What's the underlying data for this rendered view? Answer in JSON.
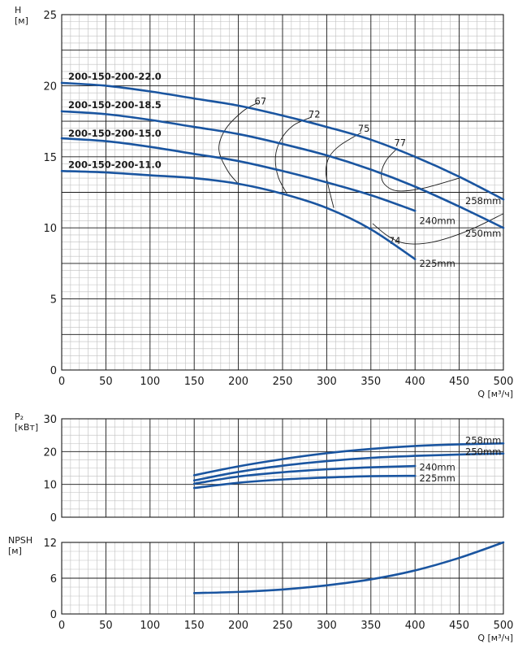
{
  "colors": {
    "curve": "#1a55a0",
    "grid_major": "#1a1a1a",
    "grid_minor": "#bfbfbf"
  },
  "chart_data": [
    {
      "type": "line",
      "panel": "head",
      "ylabel_lines": [
        "H",
        "[м]"
      ],
      "xlabel": "Q [м³/ч]",
      "xlim": [
        0,
        500
      ],
      "ylim": [
        0,
        25
      ],
      "xticks": [
        0,
        50,
        100,
        150,
        200,
        250,
        300,
        350,
        400,
        450,
        500
      ],
      "yticks": [
        0,
        5,
        10,
        15,
        20,
        25
      ],
      "grid": true,
      "models": [
        {
          "text": "200-150-200-22.0",
          "y_at": 20.2
        },
        {
          "text": "200-150-200-18.5",
          "y_at": 18.2
        },
        {
          "text": "200-150-200-15.0",
          "y_at": 16.2
        },
        {
          "text": "200-150-200-11.0",
          "y_at": 14.0
        }
      ],
      "series": [
        {
          "name": "258mm",
          "x": [
            0,
            50,
            100,
            150,
            200,
            250,
            300,
            350,
            400,
            450,
            500
          ],
          "y": [
            20.2,
            20.0,
            19.6,
            19.1,
            18.6,
            17.9,
            17.1,
            16.2,
            15.0,
            13.6,
            12.0
          ]
        },
        {
          "name": "250mm",
          "x": [
            0,
            50,
            100,
            150,
            200,
            250,
            300,
            350,
            400,
            450,
            500
          ],
          "y": [
            18.2,
            18.0,
            17.6,
            17.1,
            16.6,
            15.9,
            15.1,
            14.1,
            12.9,
            11.5,
            10.0
          ]
        },
        {
          "name": "240mm",
          "x": [
            0,
            50,
            100,
            150,
            200,
            250,
            300,
            350,
            400
          ],
          "y": [
            16.3,
            16.1,
            15.7,
            15.2,
            14.7,
            14.0,
            13.2,
            12.3,
            11.2
          ]
        },
        {
          "name": "225mm",
          "x": [
            0,
            50,
            100,
            150,
            200,
            250,
            300,
            350,
            400
          ],
          "y": [
            14.0,
            13.9,
            13.7,
            13.5,
            13.1,
            12.4,
            11.4,
            9.9,
            7.8
          ]
        }
      ],
      "efficiency": [
        {
          "label": "67",
          "label_x": 222,
          "label_y": 18.9,
          "x": [
            222,
            205,
            185,
            178,
            188,
            200
          ],
          "y": [
            18.8,
            18.2,
            16.9,
            15.5,
            14.0,
            13.1
          ]
        },
        {
          "label": "72",
          "label_x": 283,
          "label_y": 18.0,
          "x": [
            283,
            262,
            248,
            242,
            245,
            255
          ],
          "y": [
            17.8,
            17.2,
            16.2,
            15.0,
            13.6,
            12.4
          ]
        },
        {
          "label": "75",
          "label_x": 339,
          "label_y": 17.0,
          "x": [
            339,
            315,
            303,
            299,
            302,
            308
          ],
          "y": [
            16.7,
            15.8,
            15.0,
            14.0,
            12.9,
            11.4
          ]
        },
        {
          "label": "77",
          "label_x": 380,
          "label_y": 16.0,
          "x": [
            380,
            368,
            362,
            365,
            380,
            410,
            450
          ],
          "y": [
            15.6,
            14.8,
            13.9,
            13.1,
            12.6,
            12.8,
            13.5
          ]
        },
        {
          "label": "74",
          "label_x": 374,
          "label_y": 9.1,
          "x": [
            352,
            370,
            390,
            420,
            460,
            500
          ],
          "y": [
            10.3,
            9.4,
            8.9,
            9.0,
            9.8,
            11.0
          ]
        }
      ],
      "end_labels": [
        {
          "text": "258mm",
          "x": 455,
          "y": 11.9
        },
        {
          "text": "250mm",
          "x": 455,
          "y": 9.6
        },
        {
          "text": "240mm",
          "x": 403,
          "y": 10.5
        },
        {
          "text": "225mm",
          "x": 403,
          "y": 7.5
        }
      ]
    },
    {
      "type": "line",
      "panel": "power",
      "ylabel_lines": [
        "P₂",
        "[кВт]"
      ],
      "xlim": [
        0,
        500
      ],
      "ylim": [
        0,
        30
      ],
      "yticks": [
        0,
        10,
        20,
        30
      ],
      "grid": true,
      "series": [
        {
          "name": "258mm",
          "x": [
            150,
            200,
            250,
            300,
            350,
            400,
            450,
            500
          ],
          "y": [
            12.8,
            15.5,
            17.7,
            19.5,
            20.8,
            21.7,
            22.2,
            22.5
          ]
        },
        {
          "name": "250mm",
          "x": [
            150,
            200,
            250,
            300,
            350,
            400,
            450,
            500
          ],
          "y": [
            11.2,
            13.8,
            15.7,
            17.1,
            18.1,
            18.7,
            19.1,
            19.4
          ]
        },
        {
          "name": "240mm",
          "x": [
            150,
            200,
            250,
            300,
            350,
            400
          ],
          "y": [
            10.2,
            12.4,
            13.7,
            14.6,
            15.2,
            15.6
          ]
        },
        {
          "name": "225mm",
          "x": [
            150,
            200,
            250,
            300,
            350,
            400
          ],
          "y": [
            8.9,
            10.5,
            11.5,
            12.1,
            12.5,
            12.6
          ]
        }
      ],
      "end_labels": [
        {
          "text": "258mm",
          "x": 455,
          "y": 23.4
        },
        {
          "text": "250mm",
          "x": 455,
          "y": 19.9
        },
        {
          "text": "240mm",
          "x": 403,
          "y": 15.3
        },
        {
          "text": "225mm",
          "x": 403,
          "y": 11.9
        }
      ]
    },
    {
      "type": "line",
      "panel": "npsh",
      "ylabel_lines": [
        "NPSH",
        "[м]"
      ],
      "xlabel": "Q [м³/ч]",
      "xlim": [
        0,
        500
      ],
      "ylim": [
        0,
        12
      ],
      "xticks": [
        0,
        50,
        100,
        150,
        200,
        250,
        300,
        350,
        400,
        450,
        500
      ],
      "yticks": [
        0,
        6,
        12
      ],
      "grid": true,
      "series": [
        {
          "name": "NPSH",
          "x": [
            150,
            200,
            250,
            300,
            350,
            400,
            450,
            500
          ],
          "y": [
            3.5,
            3.7,
            4.1,
            4.8,
            5.8,
            7.3,
            9.4,
            12.0
          ]
        }
      ]
    }
  ]
}
